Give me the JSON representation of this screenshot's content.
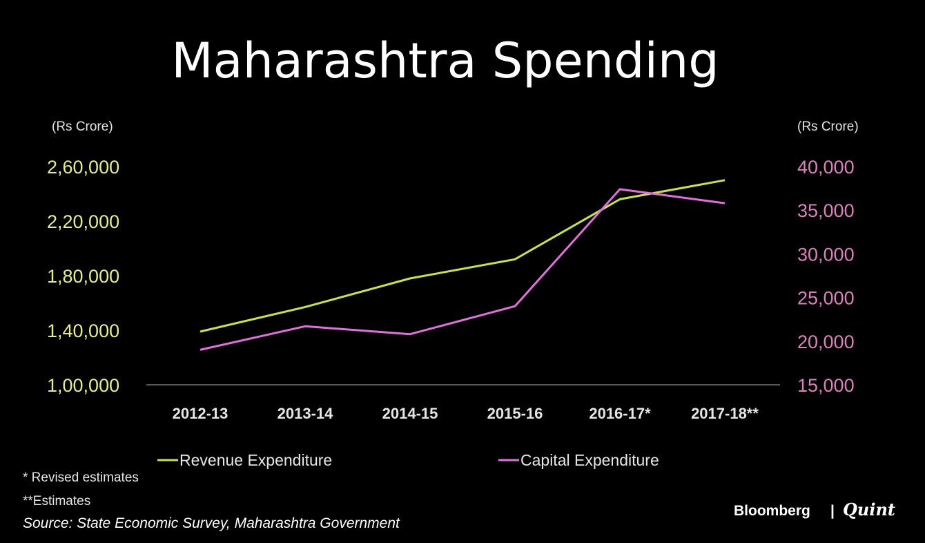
{
  "chart_data": {
    "type": "line",
    "title": "Maharashtra Spending",
    "left_axis": {
      "unit": "(Rs Crore)",
      "ylim": [
        100000,
        260000
      ],
      "ticks": [
        100000,
        140000,
        180000,
        220000,
        260000
      ],
      "tick_labels": [
        "1,00,000",
        "1,40,000",
        "1,80,000",
        "2,20,000",
        "2,60,000"
      ],
      "color": "#e8ef7a"
    },
    "right_axis": {
      "unit": "(Rs Crore)",
      "ylim": [
        15000,
        40000
      ],
      "ticks": [
        15000,
        20000,
        25000,
        30000,
        35000,
        40000
      ],
      "tick_labels": [
        "15,000",
        "20,000",
        "25,000",
        "30,000",
        "35,000",
        "40,000"
      ],
      "color": "#e07fbf"
    },
    "categories": [
      "2012-13",
      "2013-14",
      "2014-15",
      "2015-16",
      "2016-17*",
      "2017-18**"
    ],
    "series": [
      {
        "name": "Revenue Expenditure",
        "axis": "left",
        "color": "#c8e63a",
        "values": [
          139000,
          157000,
          178000,
          192000,
          236000,
          250000
        ]
      },
      {
        "name": "Capital Expenditure",
        "axis": "right",
        "color": "#e46ee0",
        "values": [
          19000,
          21700,
          20800,
          24000,
          37400,
          35800
        ]
      }
    ],
    "grid": false,
    "legend_position": "bottom"
  },
  "footnotes": [
    "* Revised estimates",
    "**Estimates"
  ],
  "source": "Source: State Economic Survey, Maharashtra Government",
  "brand": {
    "primary": "Bloomberg",
    "separator": "|",
    "secondary": "Quint"
  }
}
